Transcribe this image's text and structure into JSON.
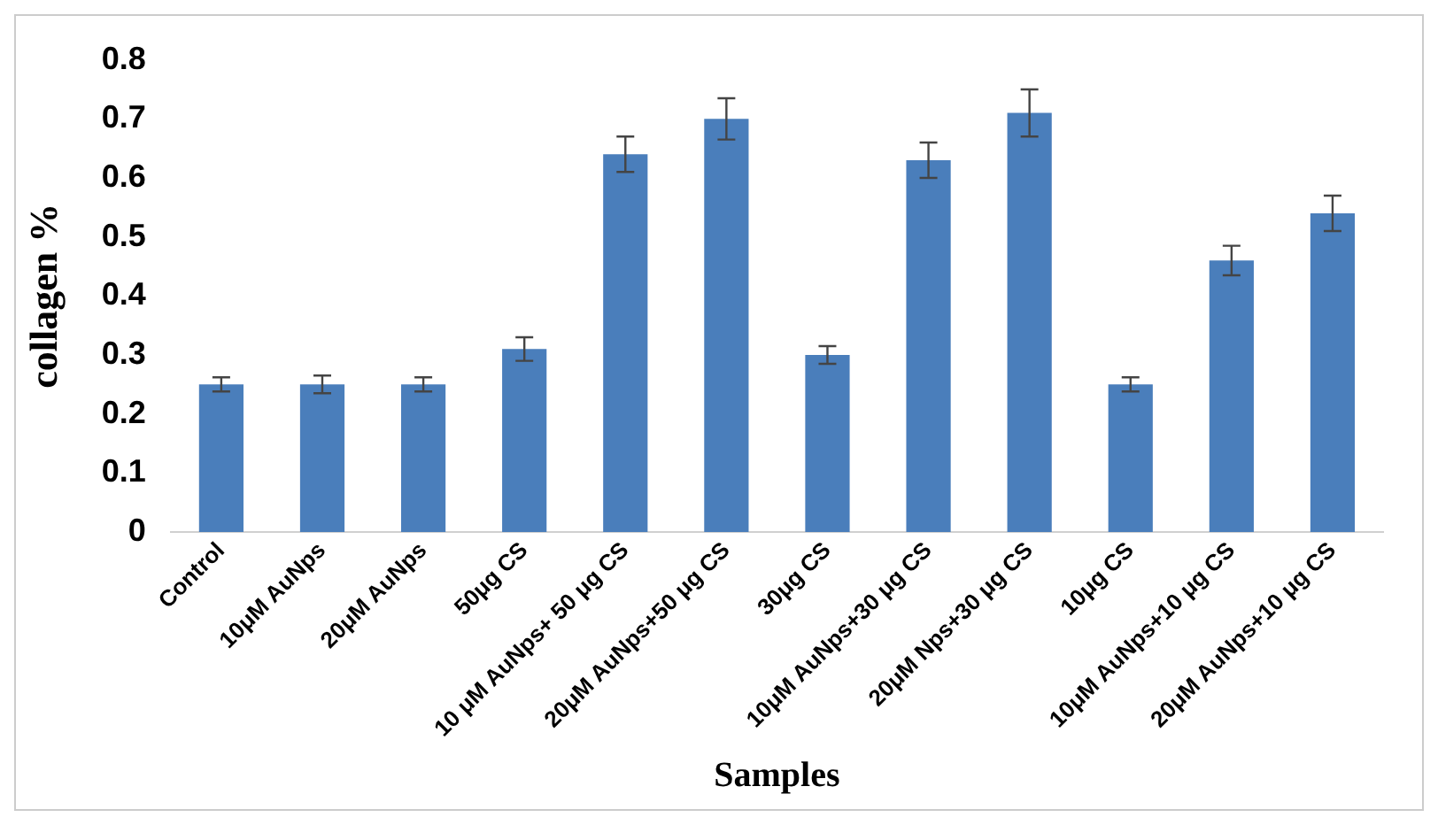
{
  "chart_data": {
    "type": "bar",
    "xlabel": "Samples",
    "ylabel": "collagen %",
    "categories": [
      "Control",
      "10μM AuNps",
      "20μM AuNps",
      "50μg CS",
      "10 μM AuNps+ 50 μg CS",
      "20μM AuNps+50 μg CS",
      "30μg CS",
      "10μM AuNps+30 μg CS",
      "20μM Nps+30 μg CS",
      "10μg CS",
      "10μM AuNps+10 μg CS",
      "20μM AuNps+10 μg CS"
    ],
    "values": [
      0.25,
      0.25,
      0.25,
      0.31,
      0.64,
      0.7,
      0.3,
      0.63,
      0.71,
      0.25,
      0.46,
      0.54
    ],
    "errors": [
      0.012,
      0.015,
      0.012,
      0.02,
      0.03,
      0.035,
      0.015,
      0.03,
      0.04,
      0.012,
      0.025,
      0.03
    ],
    "color": "#4a7ebb",
    "ylim": [
      0,
      0.8
    ],
    "yticks": [
      0,
      0.1,
      0.2,
      0.3,
      0.4,
      0.5,
      0.6,
      0.7,
      0.8
    ],
    "grid": false,
    "legend": false
  }
}
